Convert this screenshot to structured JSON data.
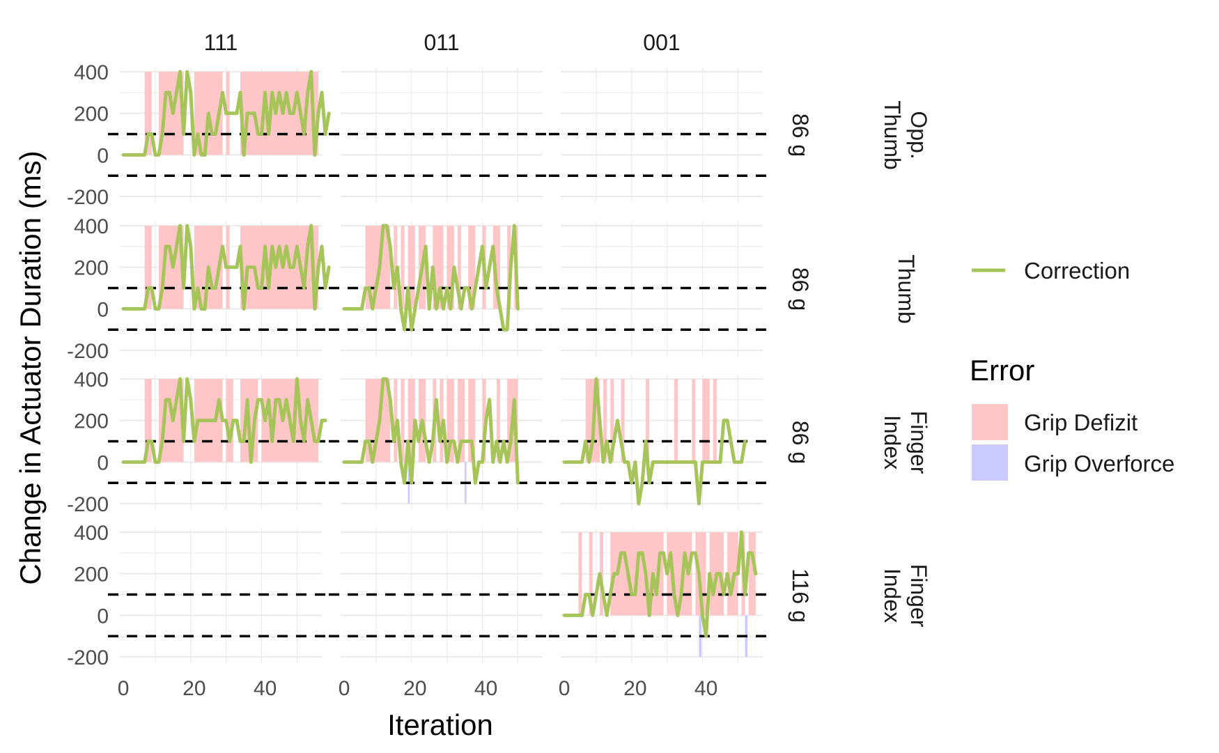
{
  "chart_data": {
    "type": "line",
    "xlabel": "Iteration",
    "ylabel": "Change in Actuator Duration (ms)",
    "xlim": [
      -1,
      56
    ],
    "ylim": [
      -230,
      420
    ],
    "x_ticks": [
      0,
      20,
      40
    ],
    "y_ticks": [
      -200,
      0,
      200,
      400
    ],
    "grid": true,
    "legend_position": "right",
    "threshold_lines": [
      100,
      -100
    ],
    "colors": {
      "correction": "#a6c45a",
      "grip_defizit": "#ffc6c8",
      "grip_overforce": "#cacaff",
      "threshold": "#000000",
      "grid": "#ebebeb"
    },
    "columns": [
      "111",
      "011",
      "001"
    ],
    "rows": [
      {
        "weight": "86 g",
        "finger": [
          "Thumb",
          "Opp."
        ]
      },
      {
        "weight": "86 g",
        "finger": [
          "Thumb"
        ]
      },
      {
        "weight": "86 g",
        "finger": [
          "Index",
          "Finger"
        ]
      },
      {
        "weight": "116 g",
        "finger": [
          "Index",
          "Finger"
        ]
      }
    ],
    "legend": {
      "line_label": "Correction",
      "error_title": "Error",
      "error_items": [
        "Grip Defizit",
        "Grip Overforce"
      ]
    },
    "panels": [
      {
        "row": 0,
        "col": 0,
        "series": "Correction",
        "values": [
          0,
          0,
          0,
          0,
          0,
          0,
          0,
          100,
          100,
          0,
          0,
          100,
          300,
          300,
          200,
          300,
          400,
          100,
          400,
          300,
          0,
          100,
          0,
          0,
          200,
          100,
          100,
          200,
          300,
          200,
          200,
          200,
          200,
          300,
          0,
          200,
          200,
          200,
          100,
          100,
          300,
          100,
          300,
          200,
          300,
          200,
          300,
          200,
          200,
          300,
          200,
          100,
          300,
          400,
          0,
          200,
          300,
          100,
          200
        ],
        "defizit": [
          [
            6,
            8
          ],
          [
            10,
            17
          ],
          [
            20,
            28
          ],
          [
            29,
            30
          ],
          [
            33,
            55
          ]
        ],
        "overforce": []
      },
      {
        "row": 0,
        "col": 1,
        "series": "Correction",
        "values": [],
        "defizit": [],
        "overforce": []
      },
      {
        "row": 0,
        "col": 2,
        "series": "Correction",
        "values": [],
        "defizit": [],
        "overforce": []
      },
      {
        "row": 1,
        "col": 0,
        "series": "Correction",
        "values": [
          0,
          0,
          0,
          0,
          0,
          0,
          0,
          100,
          100,
          0,
          0,
          100,
          300,
          300,
          200,
          300,
          400,
          100,
          400,
          300,
          0,
          100,
          0,
          0,
          200,
          100,
          100,
          200,
          300,
          200,
          200,
          200,
          200,
          300,
          0,
          200,
          200,
          200,
          100,
          100,
          300,
          100,
          300,
          200,
          300,
          200,
          300,
          200,
          200,
          300,
          200,
          100,
          300,
          400,
          0,
          200,
          300,
          100,
          200
        ],
        "defizit": [
          [
            6,
            8
          ],
          [
            10,
            17
          ],
          [
            20,
            28
          ],
          [
            29,
            30
          ],
          [
            33,
            55
          ]
        ],
        "overforce": []
      },
      {
        "row": 1,
        "col": 1,
        "series": "Correction",
        "values": [
          0,
          0,
          0,
          0,
          0,
          0,
          100,
          100,
          0,
          100,
          200,
          400,
          400,
          300,
          100,
          200,
          0,
          -100,
          100,
          -100,
          0,
          100,
          200,
          300,
          0,
          200,
          0,
          100,
          0,
          100,
          0,
          200,
          100,
          0,
          100,
          100,
          0,
          100,
          200,
          300,
          100,
          200,
          300,
          100,
          0,
          -100,
          -100,
          200,
          400,
          0
        ],
        "defizit": [
          [
            6,
            13
          ],
          [
            14,
            15
          ],
          [
            16,
            17
          ],
          [
            18,
            20
          ],
          [
            21,
            23
          ],
          [
            25,
            28
          ],
          [
            29,
            31
          ],
          [
            32,
            33
          ],
          [
            35,
            37
          ],
          [
            39,
            40
          ],
          [
            42,
            44
          ],
          [
            46,
            47
          ],
          [
            48,
            49
          ]
        ],
        "overforce": []
      },
      {
        "row": 1,
        "col": 2,
        "series": "Correction",
        "values": [],
        "defizit": [],
        "overforce": []
      },
      {
        "row": 2,
        "col": 0,
        "series": "Correction",
        "values": [
          0,
          0,
          0,
          0,
          0,
          0,
          0,
          100,
          100,
          0,
          0,
          100,
          300,
          300,
          200,
          300,
          400,
          100,
          400,
          300,
          100,
          200,
          200,
          200,
          200,
          200,
          200,
          300,
          200,
          200,
          100,
          200,
          200,
          100,
          100,
          300,
          0,
          200,
          300,
          300,
          200,
          300,
          100,
          300,
          300,
          200,
          300,
          200,
          100,
          400,
          200,
          100,
          300,
          200,
          100,
          100,
          200,
          200
        ],
        "defizit": [
          [
            6,
            8
          ],
          [
            10,
            17
          ],
          [
            20,
            28
          ],
          [
            29,
            31
          ],
          [
            33,
            38
          ],
          [
            39,
            55
          ]
        ],
        "overforce": []
      },
      {
        "row": 2,
        "col": 1,
        "series": "Correction",
        "values": [
          0,
          0,
          0,
          0,
          0,
          0,
          100,
          100,
          0,
          100,
          200,
          400,
          400,
          300,
          100,
          200,
          0,
          -100,
          100,
          -100,
          200,
          100,
          200,
          100,
          0,
          100,
          300,
          100,
          200,
          0,
          100,
          100,
          0,
          100,
          100,
          100,
          100,
          -100,
          0,
          0,
          200,
          300,
          0,
          100,
          0,
          100,
          0,
          100,
          300,
          -100
        ],
        "defizit": [
          [
            6,
            13
          ],
          [
            14,
            15
          ],
          [
            16,
            17
          ],
          [
            18,
            20
          ],
          [
            21,
            23
          ],
          [
            25,
            26
          ],
          [
            27,
            28
          ],
          [
            29,
            31
          ],
          [
            32,
            34
          ],
          [
            35,
            37
          ],
          [
            39,
            40
          ],
          [
            43,
            44
          ],
          [
            46,
            49
          ]
        ],
        "overforce": [
          [
            18,
            18.5
          ],
          [
            34,
            34.5
          ]
        ]
      },
      {
        "row": 2,
        "col": 2,
        "series": "Correction",
        "values": [
          0,
          0,
          0,
          0,
          0,
          0,
          100,
          0,
          100,
          400,
          200,
          0,
          100,
          0,
          100,
          200,
          100,
          0,
          0,
          -100,
          0,
          -200,
          -100,
          100,
          -100,
          0,
          0,
          0,
          0,
          0,
          0,
          0,
          0,
          0,
          0,
          0,
          0,
          0,
          -200,
          0,
          0,
          0,
          0,
          0,
          0,
          200,
          200,
          100,
          0,
          0,
          0,
          100
        ],
        "defizit": [
          [
            6,
            10
          ],
          [
            11,
            12
          ],
          [
            13,
            14
          ],
          [
            16,
            17
          ],
          [
            23,
            24
          ],
          [
            31,
            32
          ],
          [
            36,
            37
          ],
          [
            39,
            41
          ],
          [
            42,
            43
          ]
        ],
        "overforce": []
      },
      {
        "row": 3,
        "col": 0,
        "series": "Correction",
        "values": [],
        "defizit": [],
        "overforce": []
      },
      {
        "row": 3,
        "col": 1,
        "series": "Correction",
        "values": [],
        "defizit": [],
        "overforce": []
      },
      {
        "row": 3,
        "col": 2,
        "series": "Correction",
        "values": [
          0,
          0,
          0,
          0,
          0,
          0,
          100,
          100,
          0,
          100,
          200,
          100,
          0,
          100,
          200,
          200,
          300,
          300,
          200,
          100,
          100,
          300,
          300,
          200,
          0,
          200,
          100,
          300,
          300,
          200,
          300,
          100,
          0,
          100,
          300,
          200,
          300,
          300,
          200,
          0,
          -100,
          200,
          100,
          200,
          200,
          100,
          200,
          100,
          200,
          200,
          400,
          100,
          300,
          300,
          200
        ],
        "defizit": [
          [
            4,
            5
          ],
          [
            7,
            8
          ],
          [
            10,
            11
          ],
          [
            13,
            28
          ],
          [
            29,
            36
          ],
          [
            37,
            40
          ],
          [
            41,
            45
          ],
          [
            46,
            49
          ],
          [
            50,
            51
          ],
          [
            52,
            54
          ]
        ],
        "overforce": [
          [
            38,
            38.7
          ],
          [
            51,
            51.7
          ]
        ]
      }
    ]
  }
}
